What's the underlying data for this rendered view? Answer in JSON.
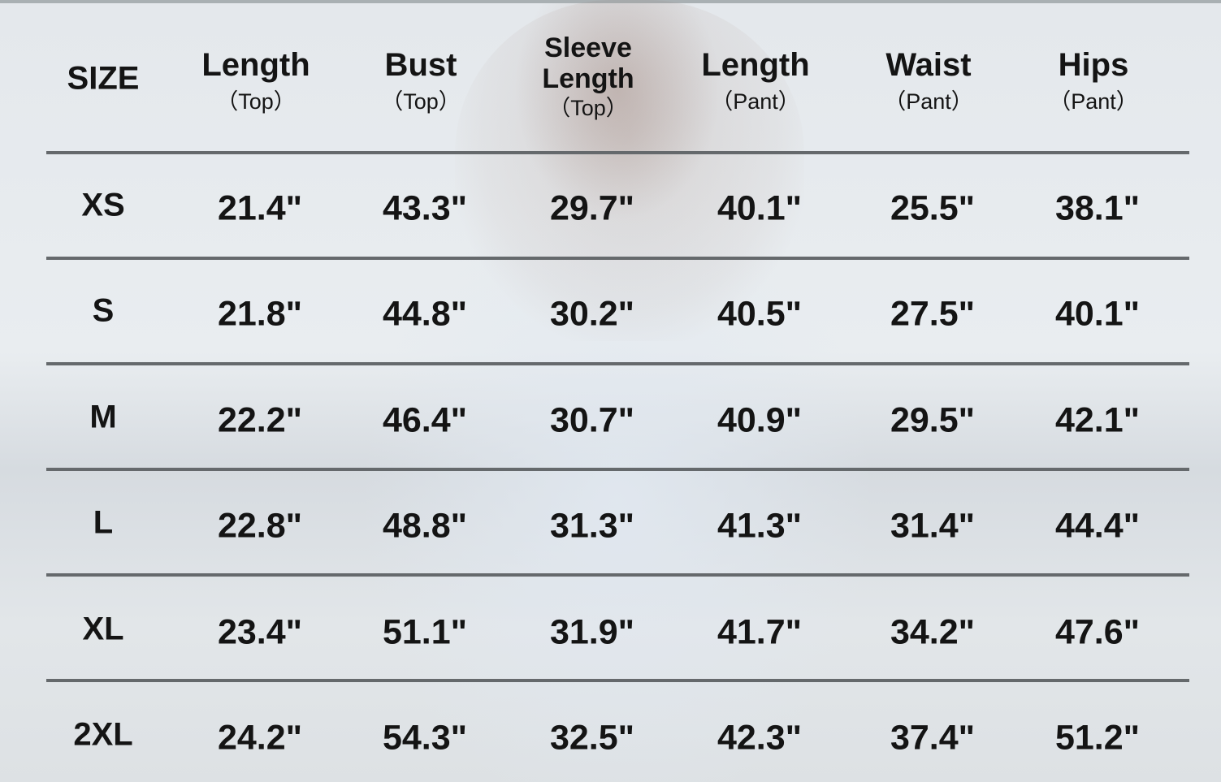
{
  "header": {
    "size": "SIZE",
    "columns": [
      {
        "main": "Length",
        "sub": "（Top）"
      },
      {
        "main": "Bust",
        "sub": "（Top）"
      },
      {
        "main": "Sleeve Length",
        "sub": "（Top）"
      },
      {
        "main": "Length",
        "sub": "（Pant）"
      },
      {
        "main": "Waist",
        "sub": "（Pant）"
      },
      {
        "main": "Hips",
        "sub": "（Pant）"
      }
    ]
  },
  "rows": [
    {
      "size": "XS",
      "values": [
        "21.4\"",
        "43.3\"",
        "29.7\"",
        "40.1\"",
        "25.5\"",
        "38.1\""
      ]
    },
    {
      "size": "S",
      "values": [
        "21.8\"",
        "44.8\"",
        "30.2\"",
        "40.5\"",
        "27.5\"",
        "40.1\""
      ]
    },
    {
      "size": "M",
      "values": [
        "22.2\"",
        "46.4\"",
        "30.7\"",
        "40.9\"",
        "29.5\"",
        "42.1\""
      ]
    },
    {
      "size": "L",
      "values": [
        "22.8\"",
        "48.8\"",
        "31.3\"",
        "41.3\"",
        "31.4\"",
        "44.4\""
      ]
    },
    {
      "size": "XL",
      "values": [
        "23.4\"",
        "51.1\"",
        "31.9\"",
        "41.7\"",
        "34.2\"",
        "47.6\""
      ]
    },
    {
      "size": "2XL",
      "values": [
        "24.2\"",
        "54.3\"",
        "32.5\"",
        "42.3\"",
        "37.4\"",
        "51.2\""
      ]
    }
  ]
}
